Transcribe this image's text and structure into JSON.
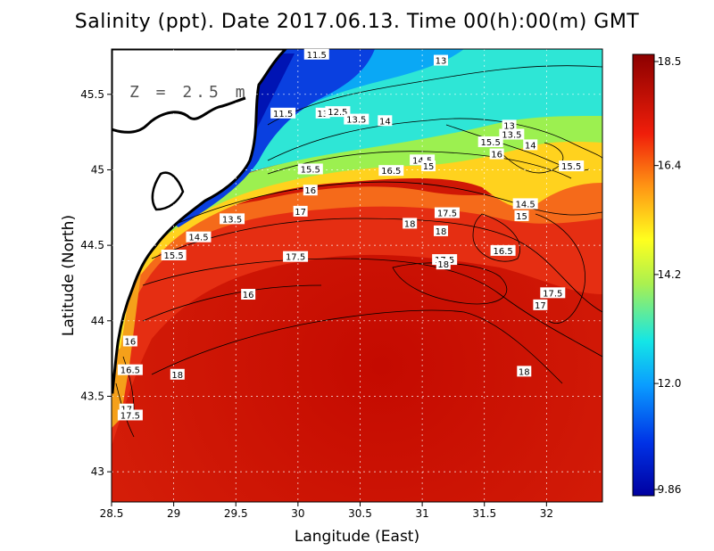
{
  "title": "Salinity (ppt). Date 2017.06.13. Time 00(h):00(m) GMT",
  "depth_label": "Z = 2.5 m",
  "chart_data": {
    "type": "heatmap",
    "xlabel": "Langitude (East)",
    "ylabel": "Latitude (North)",
    "x_ticks": [
      "28.5",
      "29",
      "29.5",
      "30",
      "30.5",
      "31",
      "31.5",
      "32"
    ],
    "y_ticks": [
      "43",
      "43.5",
      "44",
      "44.5",
      "45",
      "45.5"
    ],
    "xlim": [
      28.5,
      32.45
    ],
    "ylim": [
      42.8,
      45.8
    ],
    "grid": true,
    "colorbar": {
      "ticks": [
        "18.5",
        "16.4",
        "14.2",
        "12.0",
        "9.86"
      ],
      "min": 9.86,
      "max": 18.5
    },
    "contour_labels": [
      {
        "text": "11.5",
        "lon": 30.15,
        "lat": 45.76
      },
      {
        "text": "13",
        "lon": 31.15,
        "lat": 45.72
      },
      {
        "text": "11.5",
        "lon": 29.88,
        "lat": 45.37
      },
      {
        "text": "13",
        "lon": 30.2,
        "lat": 45.37
      },
      {
        "text": "12.5",
        "lon": 30.32,
        "lat": 45.38
      },
      {
        "text": "13.5",
        "lon": 30.47,
        "lat": 45.33
      },
      {
        "text": "14",
        "lon": 30.7,
        "lat": 45.32
      },
      {
        "text": "13",
        "lon": 31.7,
        "lat": 45.29
      },
      {
        "text": "13.5",
        "lon": 31.72,
        "lat": 45.23
      },
      {
        "text": "15.5",
        "lon": 31.55,
        "lat": 45.18
      },
      {
        "text": "14",
        "lon": 31.87,
        "lat": 45.16
      },
      {
        "text": "16",
        "lon": 31.6,
        "lat": 45.1
      },
      {
        "text": "15.5",
        "lon": 32.2,
        "lat": 45.02
      },
      {
        "text": "14.5",
        "lon": 31.0,
        "lat": 45.06
      },
      {
        "text": "15",
        "lon": 31.05,
        "lat": 45.02
      },
      {
        "text": "15.5",
        "lon": 30.1,
        "lat": 45.0
      },
      {
        "text": "16.5",
        "lon": 30.75,
        "lat": 44.99
      },
      {
        "text": "16",
        "lon": 30.1,
        "lat": 44.86
      },
      {
        "text": "14.5",
        "lon": 31.83,
        "lat": 44.77
      },
      {
        "text": "15",
        "lon": 31.8,
        "lat": 44.69
      },
      {
        "text": "17",
        "lon": 30.02,
        "lat": 44.72
      },
      {
        "text": "17.5",
        "lon": 31.2,
        "lat": 44.71
      },
      {
        "text": "13.5",
        "lon": 29.47,
        "lat": 44.67
      },
      {
        "text": "18",
        "lon": 30.9,
        "lat": 44.64
      },
      {
        "text": "18",
        "lon": 31.15,
        "lat": 44.59
      },
      {
        "text": "14.5",
        "lon": 29.2,
        "lat": 44.55
      },
      {
        "text": "16.5",
        "lon": 31.65,
        "lat": 44.46
      },
      {
        "text": "15.5",
        "lon": 29.0,
        "lat": 44.43
      },
      {
        "text": "17.5",
        "lon": 29.98,
        "lat": 44.42
      },
      {
        "text": "17.5",
        "lon": 31.18,
        "lat": 44.4
      },
      {
        "text": "18",
        "lon": 31.17,
        "lat": 44.37
      },
      {
        "text": "16",
        "lon": 29.6,
        "lat": 44.17
      },
      {
        "text": "17.5",
        "lon": 32.05,
        "lat": 44.18
      },
      {
        "text": "17",
        "lon": 31.95,
        "lat": 44.1
      },
      {
        "text": "16",
        "lon": 28.65,
        "lat": 43.86
      },
      {
        "text": "16.5",
        "lon": 28.65,
        "lat": 43.67
      },
      {
        "text": "18",
        "lon": 29.03,
        "lat": 43.64
      },
      {
        "text": "18",
        "lon": 31.82,
        "lat": 43.66
      },
      {
        "text": "17",
        "lon": 28.62,
        "lat": 43.41
      },
      {
        "text": "17.5",
        "lon": 28.65,
        "lat": 43.37
      }
    ]
  }
}
